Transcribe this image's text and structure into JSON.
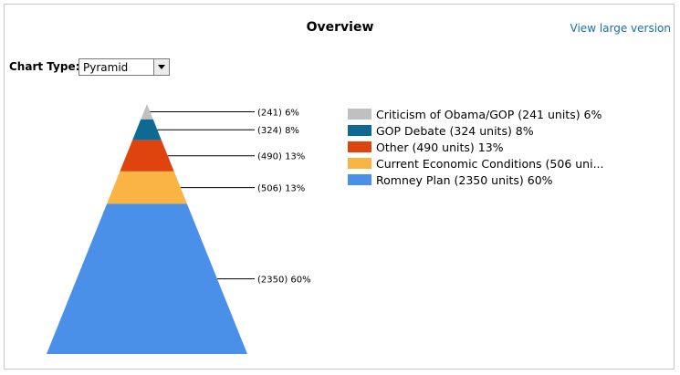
{
  "header": {
    "title": "Overview",
    "view_large_label": "View large version"
  },
  "controls": {
    "chart_type_label": "Chart Type:",
    "chart_type_value": "Pyramid"
  },
  "chart_data": {
    "type": "pyramid",
    "title": "Overview",
    "series": [
      {
        "label": "Criticism of Obama/GOP",
        "units": 241,
        "percent": 6,
        "color": "#c0c0c0",
        "data_label": "(241) 6%",
        "legend_label": "Criticism of Obama/GOP (241 units) 6%"
      },
      {
        "label": "GOP Debate",
        "units": 324,
        "percent": 8,
        "color": "#0e6a93",
        "data_label": "(324) 8%",
        "legend_label": "GOP Debate (324 units) 8%"
      },
      {
        "label": "Other",
        "units": 490,
        "percent": 13,
        "color": "#e0440e",
        "data_label": "(490) 13%",
        "legend_label": "Other (490 units) 13%"
      },
      {
        "label": "Current Economic Conditions",
        "units": 506,
        "percent": 13,
        "color": "#f9b444",
        "data_label": "(506) 13%",
        "legend_label": "Current  Economic  Conditions  (506 uni..."
      },
      {
        "label": "Romney Plan",
        "units": 2350,
        "percent": 60,
        "color": "#4a90e8",
        "data_label": "(2350) 60%",
        "legend_label": "Romney Plan (2350 units) 60%"
      }
    ],
    "legend_position": "right"
  }
}
